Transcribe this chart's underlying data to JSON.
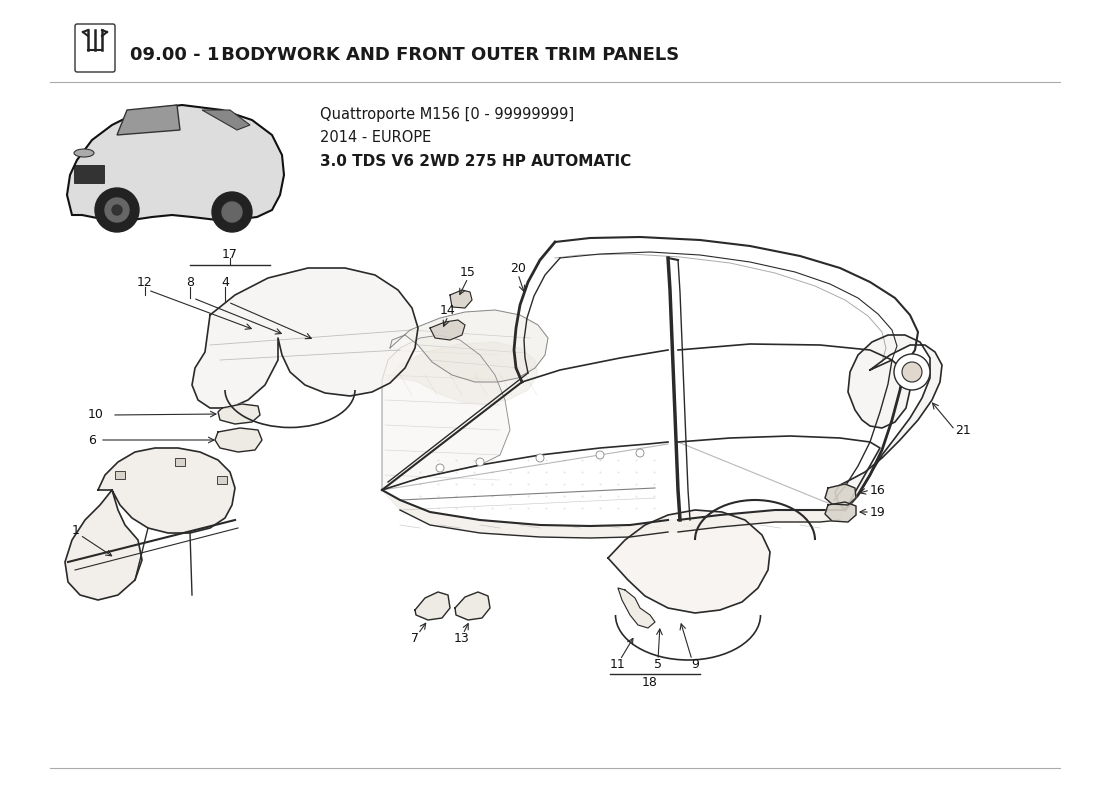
{
  "title_bold": "09.00 - 1",
  "title_rest": " BODYWORK AND FRONT OUTER TRIM PANELS",
  "subtitle_line1": "Quattroporte M156 [0 - 99999999]",
  "subtitle_line2": "2014 - EUROPE",
  "subtitle_line3": "3.0 TDS V6 2WD 275 HP AUTOMATIC",
  "background_color": "#ffffff",
  "text_color": "#1a1a1a",
  "title_fontsize": 12,
  "subtitle_fontsize": 10.5,
  "label_fontsize": 9,
  "line_color": "#2a2a2a",
  "light_line": "#555555",
  "fill_color": "#f5f2ee",
  "fill_color2": "#ede9e2",
  "fill_dark": "#d8d3ca"
}
